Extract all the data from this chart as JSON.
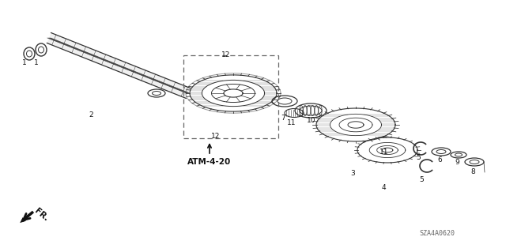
{
  "bg_color": "#ffffff",
  "part_number": "SZA4A0620",
  "atm_label": "ATM-4-20",
  "fr_label": "FR.",
  "line_color": "#333333",
  "dashed_box_color": "#555555"
}
